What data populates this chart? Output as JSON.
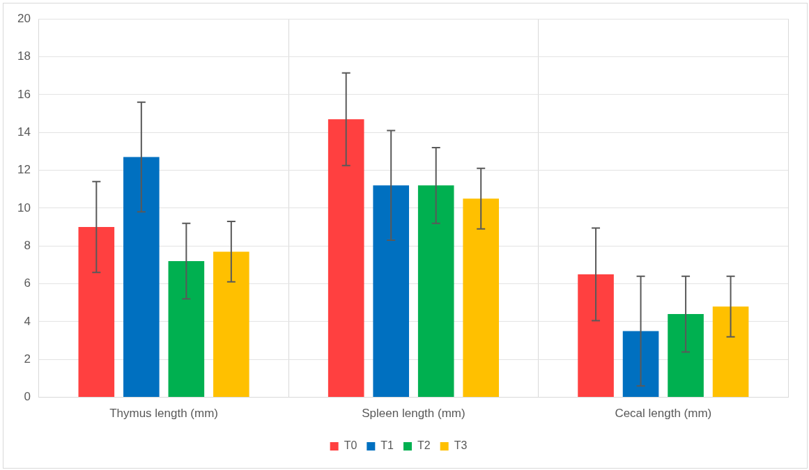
{
  "chart_data": {
    "type": "bar",
    "categories": [
      "Thymus length (mm)",
      "Spleen length (mm)",
      "Cecal length (mm)"
    ],
    "series": [
      {
        "name": "T0",
        "color": "#ff4040",
        "values": [
          9.0,
          14.7,
          6.5
        ],
        "errors": [
          2.4,
          2.45,
          2.45
        ]
      },
      {
        "name": "T1",
        "color": "#0070c0",
        "values": [
          12.7,
          11.2,
          3.5
        ],
        "errors": [
          2.9,
          2.9,
          2.9
        ]
      },
      {
        "name": "T2",
        "color": "#00b050",
        "values": [
          7.2,
          11.2,
          4.4
        ],
        "errors": [
          2.0,
          2.0,
          2.0
        ]
      },
      {
        "name": "T3",
        "color": "#ffc000",
        "values": [
          7.7,
          10.5,
          4.8
        ],
        "errors": [
          1.6,
          1.6,
          1.6
        ]
      }
    ],
    "ylim": [
      0,
      20
    ],
    "yticks": [
      0,
      2,
      4,
      6,
      8,
      10,
      12,
      14,
      16,
      18,
      20
    ],
    "grid": true,
    "legend": "bottom"
  }
}
